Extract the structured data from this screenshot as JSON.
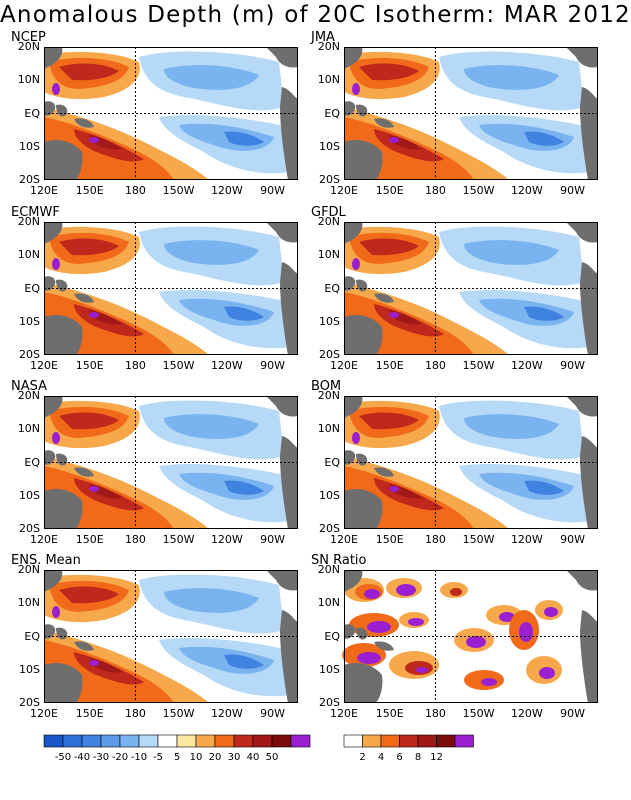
{
  "title": "Anomalous Depth (m) of 20C Isotherm: MAR 2012",
  "y_ticks": [
    "20N",
    "10N",
    "EQ",
    "10S",
    "20S"
  ],
  "x_ticks": [
    "120E",
    "150E",
    "180",
    "150W",
    "120W",
    "90W"
  ],
  "colors": {
    "land": "#6e6e6e",
    "dry_red": "#c0281c",
    "deep_red": "#a01818",
    "orange": "#f06a1a",
    "light_orange": "#f7a84a",
    "yellow": "#fde7a0",
    "pale_blue": "#b5d9f7",
    "mid_blue": "#7ab4f0",
    "blue": "#3f82e0",
    "purple": "#9b1fd1",
    "dark_blue": "#1a55c8"
  },
  "panels": [
    {
      "label": "NCEP"
    },
    {
      "label": "JMA"
    },
    {
      "label": "ECMWF"
    },
    {
      "label": "GFDL"
    },
    {
      "label": "NASA"
    },
    {
      "label": "BOM"
    },
    {
      "label": "ENS. Mean"
    },
    {
      "label": "SN Ratio"
    }
  ],
  "colorbar_anomaly": {
    "labels": [
      "-50",
      "-40",
      "-30",
      "-20",
      "-10",
      "-5",
      "5",
      "10",
      "20",
      "30",
      "40",
      "50"
    ],
    "colors": [
      "#1a55c8",
      "#2e6fd8",
      "#3f82e0",
      "#5c9ae8",
      "#7ab4f0",
      "#b5d9f7",
      "#ffffff",
      "#fde7a0",
      "#f7a84a",
      "#f06a1a",
      "#c0281c",
      "#a01818",
      "#7a0c0c",
      "#9b1fd1"
    ]
  },
  "colorbar_sn": {
    "labels": [
      "2",
      "4",
      "6",
      "8",
      "12"
    ],
    "colors": [
      "#ffffff",
      "#f7a84a",
      "#f06a1a",
      "#c0281c",
      "#a01818",
      "#7a0c0c",
      "#9b1fd1"
    ]
  }
}
